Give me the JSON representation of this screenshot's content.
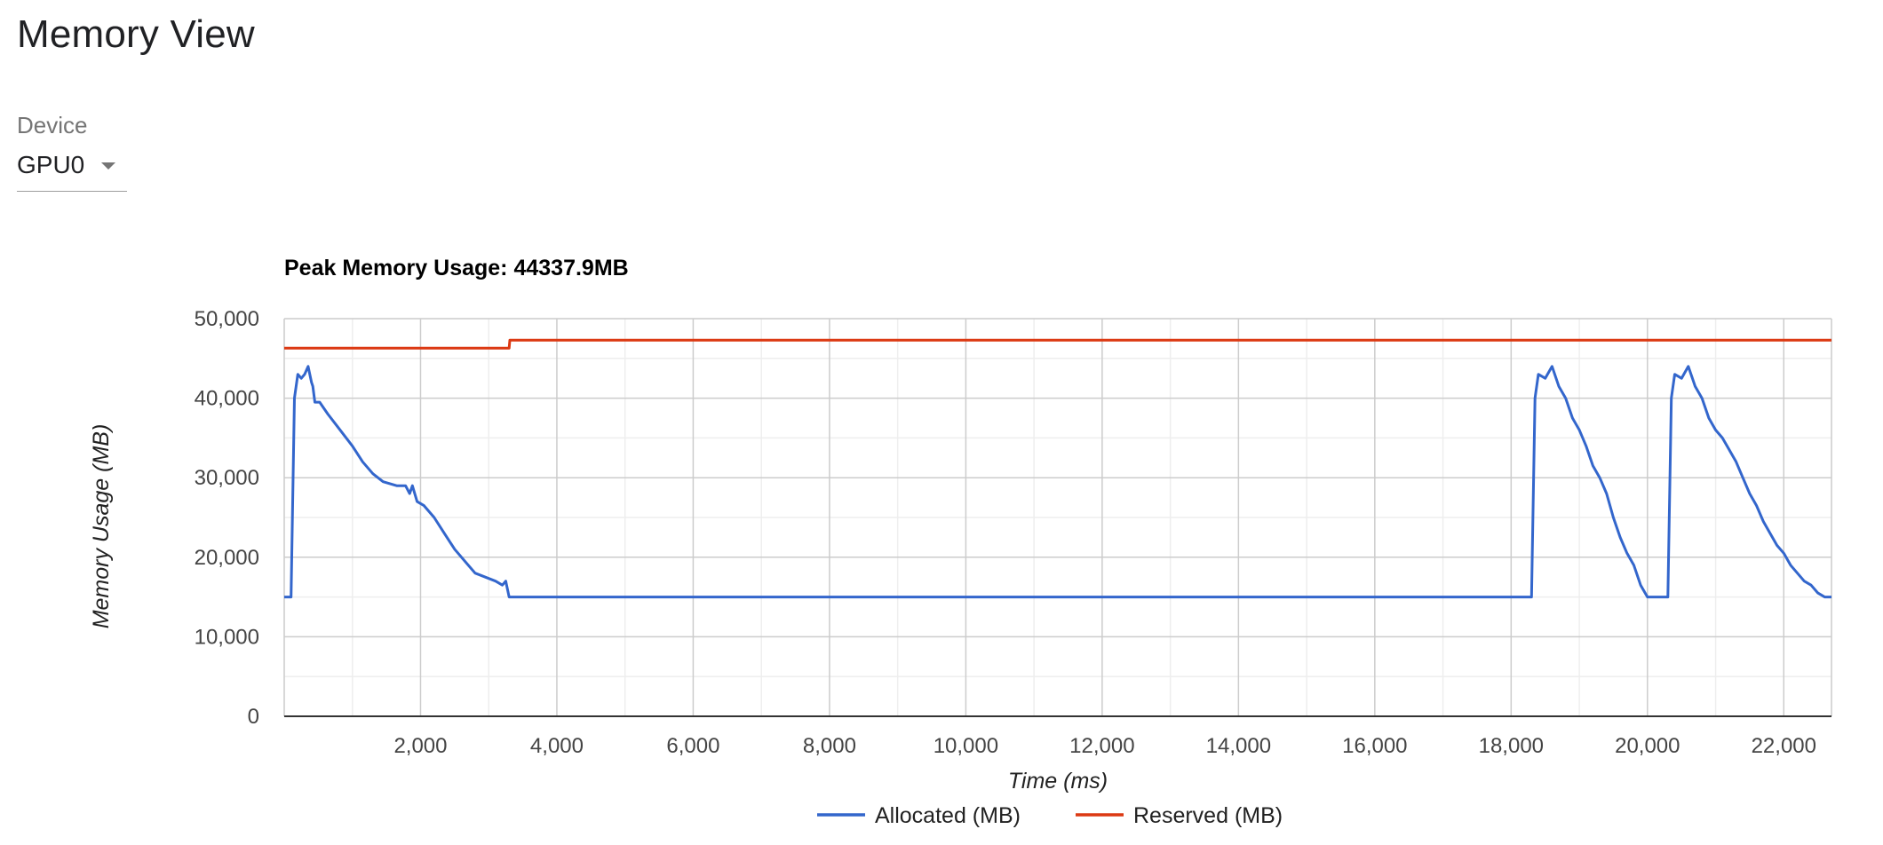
{
  "header": {
    "title": "Memory View"
  },
  "device": {
    "label": "Device",
    "selected": "GPU0"
  },
  "chart_data": {
    "type": "line",
    "title": "Peak Memory Usage: 44337.9MB",
    "xlabel": "Time (ms)",
    "ylabel": "Memory Usage (MB)",
    "xlim": [
      0,
      22700
    ],
    "ylim": [
      0,
      50000
    ],
    "x_ticks": [
      2000,
      4000,
      6000,
      8000,
      10000,
      12000,
      14000,
      16000,
      18000,
      20000,
      22000
    ],
    "x_tick_labels": [
      "2,000",
      "4,000",
      "6,000",
      "8,000",
      "10,000",
      "12,000",
      "14,000",
      "16,000",
      "18,000",
      "20,000",
      "22,000"
    ],
    "y_ticks": [
      0,
      10000,
      20000,
      30000,
      40000,
      50000
    ],
    "y_tick_labels": [
      "0",
      "10,000",
      "20,000",
      "30,000",
      "40,000",
      "50,000"
    ],
    "grid": true,
    "legend_position": "bottom",
    "series": [
      {
        "name": "Allocated (MB)",
        "color": "#3366cc",
        "x": [
          0,
          100,
          150,
          200,
          250,
          300,
          350,
          400,
          420,
          450,
          520,
          640,
          820,
          1000,
          1150,
          1300,
          1450,
          1650,
          1780,
          1840,
          1880,
          1950,
          2050,
          2200,
          2350,
          2500,
          2650,
          2800,
          2950,
          3100,
          3200,
          3250,
          3300,
          3350,
          5000,
          8000,
          12000,
          16000,
          18300,
          18350,
          18400,
          18500,
          18600,
          18700,
          18800,
          18900,
          19000,
          19100,
          19200,
          19300,
          19400,
          19500,
          19600,
          19700,
          19800,
          19900,
          20000,
          20200,
          20300,
          20350,
          20400,
          20500,
          20600,
          20700,
          20800,
          20900,
          21000,
          21100,
          21200,
          21300,
          21400,
          21500,
          21600,
          21700,
          21800,
          21900,
          22000,
          22100,
          22200,
          22300,
          22400,
          22500,
          22600,
          22700
        ],
        "y": [
          15000,
          15000,
          40000,
          43000,
          42500,
          43000,
          44000,
          42000,
          41500,
          39500,
          39500,
          38000,
          36000,
          34000,
          32000,
          30500,
          29500,
          29000,
          29000,
          28000,
          29000,
          27000,
          26500,
          25000,
          23000,
          21000,
          19500,
          18000,
          17500,
          17000,
          16500,
          17000,
          15000,
          15000,
          15000,
          15000,
          15000,
          15000,
          15000,
          40000,
          43000,
          42500,
          44000,
          41500,
          40000,
          37500,
          36000,
          34000,
          31500,
          30000,
          28000,
          25000,
          22500,
          20500,
          19000,
          16500,
          15000,
          15000,
          15000,
          40000,
          43000,
          42500,
          44000,
          41500,
          40000,
          37500,
          36000,
          35000,
          33500,
          32000,
          30000,
          28000,
          26500,
          24500,
          23000,
          21500,
          20500,
          19000,
          18000,
          17000,
          16500,
          15500,
          15000,
          15000
        ]
      },
      {
        "name": "Reserved (MB)",
        "color": "#dc3912",
        "x": [
          0,
          3300,
          3310,
          22700
        ],
        "y": [
          46300,
          46300,
          47300,
          47300
        ]
      }
    ]
  }
}
